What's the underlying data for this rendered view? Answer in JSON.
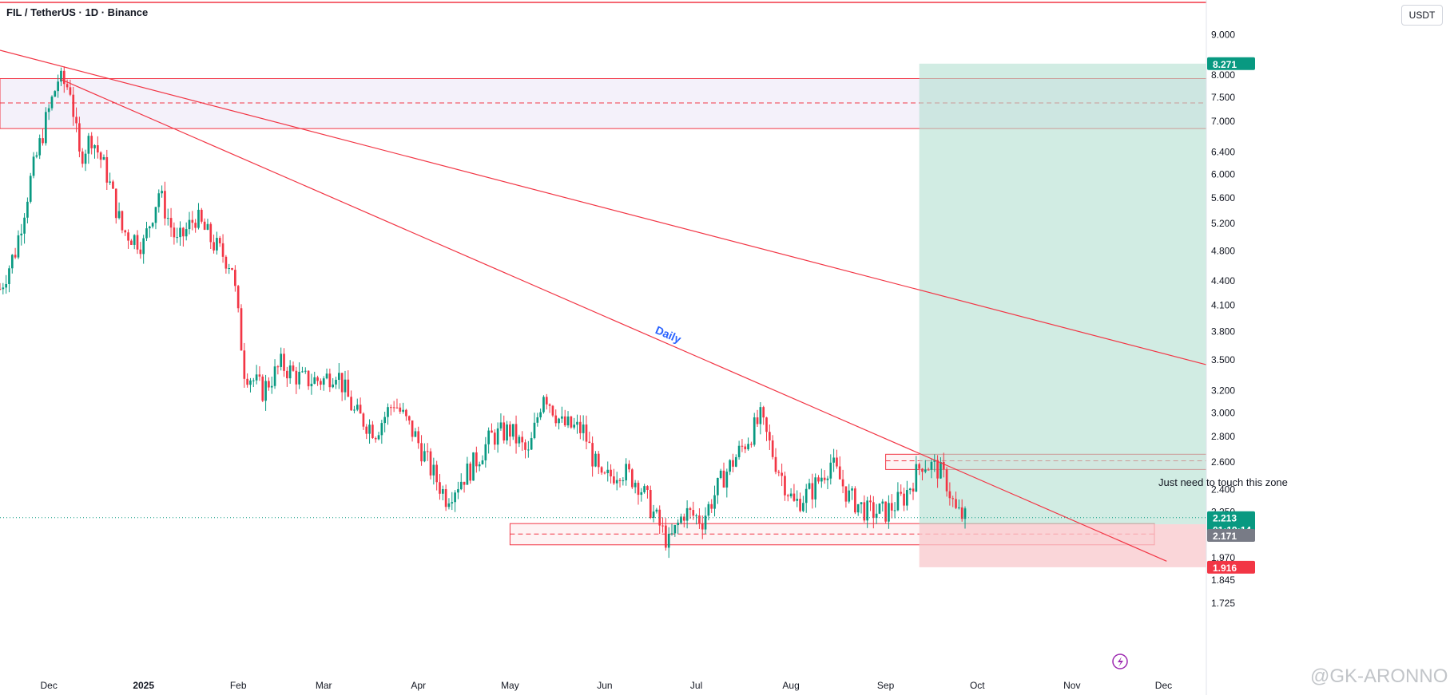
{
  "header": {
    "title": "FIL / TetherUS · 1D · Binance",
    "currency": "USDT"
  },
  "price_labels": {
    "target": {
      "text": "8.271",
      "value": 8.271,
      "color": "#089981"
    },
    "current": {
      "text": "2.213",
      "value": 2.213,
      "color": "#089981"
    },
    "countdown": {
      "text": "01:19:14"
    },
    "entry": {
      "text": "2.171",
      "value": 2.171,
      "color": "#787b86"
    },
    "stop": {
      "text": "1.916",
      "value": 1.916,
      "color": "#f23645"
    }
  },
  "annotations": {
    "daily": "Daily",
    "zone_note": "Just need to touch this zone",
    "watermark": "@GK-ARONNO"
  },
  "colors": {
    "up": "#089981",
    "down": "#f23645",
    "line": "#f23645",
    "profit_zone": "#b2dfd0",
    "loss_zone": "#f8c8cc"
  },
  "chart_data": {
    "type": "candlestick",
    "symbol": "FIL / TetherUS",
    "interval": "1D",
    "exchange": "Binance",
    "y_scale": "log",
    "ylim": [
      1.75,
      9.5
    ],
    "y_ticks": [
      9.0,
      8.0,
      7.5,
      7.0,
      6.4,
      6.0,
      5.6,
      5.2,
      4.8,
      4.4,
      4.1,
      3.8,
      3.5,
      3.2,
      3.0,
      2.8,
      2.6,
      2.4,
      2.25,
      1.97,
      1.845,
      1.725
    ],
    "y_tick_labels": [
      "9.000",
      "8.000",
      "7.500",
      "7.000",
      "6.400",
      "6.000",
      "5.600",
      "5.200",
      "4.800",
      "4.400",
      "4.100",
      "3.800",
      "3.500",
      "3.200",
      "3.000",
      "2.800",
      "2.600",
      "2.400",
      "2.250",
      "1.970",
      "1.845",
      "1.725"
    ],
    "x_labels": [
      "Dec",
      "2025",
      "Feb",
      "Mar",
      "Apr",
      "May",
      "Jun",
      "Jul",
      "Aug",
      "Sep",
      "Oct",
      "Nov",
      "Dec"
    ],
    "x_range": [
      "2024-11-15",
      "2025-12-15"
    ],
    "x_label_dates": [
      "2024-12-01",
      "2025-01-01",
      "2025-02-01",
      "2025-03-01",
      "2025-04-01",
      "2025-05-01",
      "2025-06-01",
      "2025-07-01",
      "2025-08-01",
      "2025-09-01",
      "2025-10-01",
      "2025-11-01",
      "2025-12-01"
    ],
    "close_path": [
      [
        "2024-11-15",
        4.3
      ],
      [
        "2024-11-20",
        4.8
      ],
      [
        "2024-11-25",
        5.9
      ],
      [
        "2024-11-30",
        7.0
      ],
      [
        "2024-12-04",
        7.9
      ],
      [
        "2024-12-08",
        7.7
      ],
      [
        "2024-12-11",
        6.3
      ],
      [
        "2024-12-15",
        6.7
      ],
      [
        "2024-12-20",
        6.0
      ],
      [
        "2024-12-25",
        5.1
      ],
      [
        "2025-01-01",
        4.9
      ],
      [
        "2025-01-06",
        5.7
      ],
      [
        "2025-01-12",
        4.9
      ],
      [
        "2025-01-18",
        5.3
      ],
      [
        "2025-01-24",
        4.9
      ],
      [
        "2025-01-30",
        4.6
      ],
      [
        "2025-02-03",
        3.4
      ],
      [
        "2025-02-09",
        3.2
      ],
      [
        "2025-02-15",
        3.45
      ],
      [
        "2025-02-22",
        3.3
      ],
      [
        "2025-03-01",
        3.3
      ],
      [
        "2025-03-05",
        3.4
      ],
      [
        "2025-03-11",
        3.0
      ],
      [
        "2025-03-18",
        2.85
      ],
      [
        "2025-03-24",
        3.1
      ],
      [
        "2025-03-31",
        2.8
      ],
      [
        "2025-04-05",
        2.55
      ],
      [
        "2025-04-10",
        2.35
      ],
      [
        "2025-04-18",
        2.55
      ],
      [
        "2025-04-25",
        2.8
      ],
      [
        "2025-05-01",
        2.85
      ],
      [
        "2025-05-07",
        2.65
      ],
      [
        "2025-05-12",
        3.2
      ],
      [
        "2025-05-18",
        2.9
      ],
      [
        "2025-05-25",
        2.85
      ],
      [
        "2025-05-31",
        2.45
      ],
      [
        "2025-06-06",
        2.55
      ],
      [
        "2025-06-12",
        2.45
      ],
      [
        "2025-06-18",
        2.2
      ],
      [
        "2025-06-22",
        2.05
      ],
      [
        "2025-06-27",
        2.25
      ],
      [
        "2025-07-03",
        2.2
      ],
      [
        "2025-07-10",
        2.5
      ],
      [
        "2025-07-17",
        2.75
      ],
      [
        "2025-07-22",
        2.95
      ],
      [
        "2025-07-27",
        2.6
      ],
      [
        "2025-08-02",
        2.3
      ],
      [
        "2025-08-08",
        2.4
      ],
      [
        "2025-08-14",
        2.6
      ],
      [
        "2025-08-20",
        2.35
      ],
      [
        "2025-08-26",
        2.25
      ],
      [
        "2025-09-01",
        2.25
      ],
      [
        "2025-09-07",
        2.35
      ],
      [
        "2025-09-13",
        2.6
      ],
      [
        "2025-09-18",
        2.55
      ],
      [
        "2025-09-21",
        2.45
      ],
      [
        "2025-09-24",
        2.25
      ],
      [
        "2025-09-27",
        2.21
      ]
    ],
    "trendlines": [
      {
        "from": [
          "2024-11-15",
          8.6
        ],
        "to": [
          "2025-12-15",
          3.45
        ]
      },
      {
        "from": [
          "2024-12-05",
          7.9
        ],
        "to": [
          "2025-12-02",
          1.95
        ]
      }
    ],
    "zones": [
      {
        "top": 7.92,
        "bottom": 6.85,
        "mid": 7.38,
        "from": "2024-11-15",
        "to": "2025-12-15"
      },
      {
        "top": 2.66,
        "bottom": 2.545,
        "mid": 2.61,
        "from": "2025-09-01",
        "to": "2025-12-15"
      },
      {
        "top": 2.175,
        "bottom": 2.045,
        "mid": 2.11,
        "from": "2025-05-01",
        "to": "2025-11-28"
      }
    ],
    "position": {
      "type": "long",
      "start": "2025-09-12",
      "end": "2025-12-15",
      "entry": 2.171,
      "target": 8.271,
      "stop": 1.916
    }
  }
}
